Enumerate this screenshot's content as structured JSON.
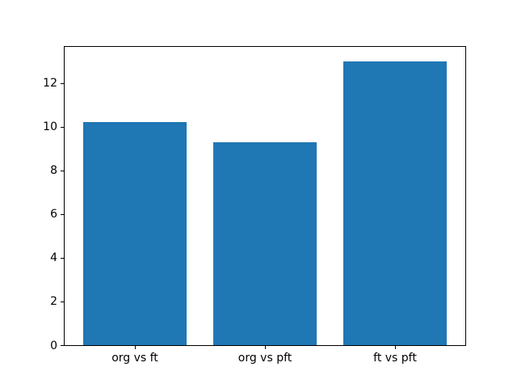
{
  "chart_data": {
    "type": "bar",
    "title": "",
    "xlabel": "",
    "ylabel": "",
    "categories": [
      "org vs ft",
      "org vs pft",
      "ft vs pft"
    ],
    "values": [
      10.2,
      9.3,
      13.0
    ],
    "yticks": [
      0,
      2,
      4,
      6,
      8,
      10,
      12
    ],
    "ylim": [
      0,
      13.65
    ],
    "xlim": [
      -0.54,
      2.54
    ],
    "bar_width_units": 0.8,
    "grid": false,
    "legend": false,
    "bar_color": "#1f77b4",
    "background_color": "#ffffff",
    "spine_color": "#000000",
    "text_color": "#000000"
  }
}
